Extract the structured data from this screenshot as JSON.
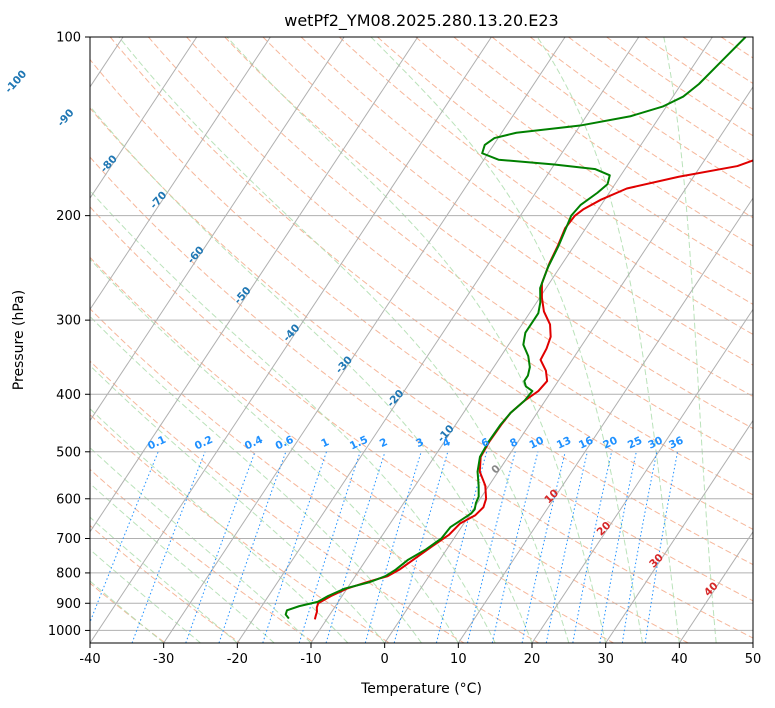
{
  "chart_data": {
    "type": "line",
    "title": "wetPf2_YM08.2025.280.13.20.E23",
    "xlabel": "Temperature (°C)",
    "ylabel": "Pressure (hPa)",
    "xlim": [
      -40,
      50
    ],
    "ylim": [
      1050,
      100
    ],
    "y_scale": "log",
    "x_ticks": [
      "-40",
      "-30",
      "-20",
      "-10",
      "0",
      "10",
      "20",
      "30",
      "40",
      "50"
    ],
    "x_tick_values": [
      -40,
      -30,
      -20,
      -10,
      0,
      10,
      20,
      30,
      40,
      50
    ],
    "y_ticks": [
      "100",
      "200",
      "300",
      "400",
      "500",
      "600",
      "700",
      "800",
      "900",
      "1000"
    ],
    "y_tick_values": [
      100,
      200,
      300,
      400,
      500,
      600,
      700,
      800,
      900,
      1000
    ],
    "grid": true,
    "colors": {
      "temperature": "#e00000",
      "dewpoint": "#008000",
      "isotherm_label": "#1f77b4",
      "mixing_ratio": "#1e90ff",
      "moist_adiabat_label": "#d62728",
      "dry_adiabat": "#f4a582",
      "moist_adiabat": "#b2dfb2",
      "grid": "#b0b0b0"
    },
    "series": [
      {
        "type": "temperature",
        "points": [
          {
            "p": 100,
            "t": 16.3
          },
          {
            "p": 115,
            "t": 10.0
          },
          {
            "p": 125,
            "t": 6.5
          },
          {
            "p": 132,
            "t": 5.6
          },
          {
            "p": 140,
            "t": 5.9
          },
          {
            "p": 148,
            "t": 6.8
          },
          {
            "p": 155,
            "t": 7.5
          },
          {
            "p": 160,
            "t": 7.3
          },
          {
            "p": 165,
            "t": 5.0
          },
          {
            "p": 172,
            "t": -2.0
          },
          {
            "p": 180,
            "t": -8.0
          },
          {
            "p": 188,
            "t": -10.5
          },
          {
            "p": 195,
            "t": -12.0
          },
          {
            "p": 200,
            "t": -12.6
          },
          {
            "p": 210,
            "t": -12.8
          },
          {
            "p": 225,
            "t": -12.2
          },
          {
            "p": 240,
            "t": -11.8
          },
          {
            "p": 260,
            "t": -11.0
          },
          {
            "p": 275,
            "t": -9.7
          },
          {
            "p": 290,
            "t": -8.2
          },
          {
            "p": 305,
            "t": -6.2
          },
          {
            "p": 320,
            "t": -5.0
          },
          {
            "p": 335,
            "t": -4.5
          },
          {
            "p": 350,
            "t": -4.3
          },
          {
            "p": 365,
            "t": -2.6
          },
          {
            "p": 380,
            "t": -1.5
          },
          {
            "p": 395,
            "t": -1.8
          },
          {
            "p": 410,
            "t": -2.8
          },
          {
            "p": 430,
            "t": -3.6
          },
          {
            "p": 450,
            "t": -3.8
          },
          {
            "p": 480,
            "t": -3.9
          },
          {
            "p": 510,
            "t": -3.7
          },
          {
            "p": 540,
            "t": -2.5
          },
          {
            "p": 570,
            "t": -0.5
          },
          {
            "p": 600,
            "t": 0.8
          },
          {
            "p": 620,
            "t": 1.2
          },
          {
            "p": 640,
            "t": 0.8
          },
          {
            "p": 660,
            "t": -0.5
          },
          {
            "p": 690,
            "t": -1.0
          },
          {
            "p": 720,
            "t": -2.2
          },
          {
            "p": 760,
            "t": -3.6
          },
          {
            "p": 790,
            "t": -4.6
          },
          {
            "p": 810,
            "t": -5.6
          },
          {
            "p": 830,
            "t": -8.0
          },
          {
            "p": 850,
            "t": -10.0
          },
          {
            "p": 875,
            "t": -11.5
          },
          {
            "p": 900,
            "t": -12.6
          },
          {
            "p": 915,
            "t": -12.4
          },
          {
            "p": 930,
            "t": -12.0
          },
          {
            "p": 945,
            "t": -11.8
          },
          {
            "p": 958,
            "t": -11.6
          }
        ]
      },
      {
        "type": "dewpoint",
        "points": [
          {
            "p": 100,
            "t": -5.5
          },
          {
            "p": 110,
            "t": -6.6
          },
          {
            "p": 120,
            "t": -7.6
          },
          {
            "p": 126,
            "t": -8.6
          },
          {
            "p": 131,
            "t": -10.5
          },
          {
            "p": 136,
            "t": -14.0
          },
          {
            "p": 141,
            "t": -20.0
          },
          {
            "p": 145,
            "t": -28.0
          },
          {
            "p": 148,
            "t": -30.5
          },
          {
            "p": 152,
            "t": -31.2
          },
          {
            "p": 157,
            "t": -30.8
          },
          {
            "p": 161,
            "t": -28.0
          },
          {
            "p": 164,
            "t": -20.0
          },
          {
            "p": 167,
            "t": -14.0
          },
          {
            "p": 171,
            "t": -11.5
          },
          {
            "p": 177,
            "t": -11.0
          },
          {
            "p": 183,
            "t": -11.6
          },
          {
            "p": 192,
            "t": -12.8
          },
          {
            "p": 200,
            "t": -13.1
          },
          {
            "p": 212,
            "t": -12.6
          },
          {
            "p": 225,
            "t": -12.1
          },
          {
            "p": 245,
            "t": -11.6
          },
          {
            "p": 265,
            "t": -10.8
          },
          {
            "p": 280,
            "t": -9.5
          },
          {
            "p": 292,
            "t": -8.8
          },
          {
            "p": 300,
            "t": -8.8
          },
          {
            "p": 315,
            "t": -8.8
          },
          {
            "p": 330,
            "t": -8.0
          },
          {
            "p": 345,
            "t": -6.3
          },
          {
            "p": 360,
            "t": -5.1
          },
          {
            "p": 372,
            "t": -4.6
          },
          {
            "p": 380,
            "t": -4.6
          },
          {
            "p": 388,
            "t": -3.9
          },
          {
            "p": 395,
            "t": -2.6
          },
          {
            "p": 410,
            "t": -2.8
          },
          {
            "p": 430,
            "t": -3.6
          },
          {
            "p": 450,
            "t": -3.9
          },
          {
            "p": 480,
            "t": -4.0
          },
          {
            "p": 510,
            "t": -3.8
          },
          {
            "p": 540,
            "t": -2.8
          },
          {
            "p": 570,
            "t": -1.4
          },
          {
            "p": 595,
            "t": -0.4
          },
          {
            "p": 610,
            "t": -0.2
          },
          {
            "p": 625,
            "t": 0.2
          },
          {
            "p": 635,
            "t": 0.1
          },
          {
            "p": 650,
            "t": -0.6
          },
          {
            "p": 670,
            "t": -1.5
          },
          {
            "p": 700,
            "t": -1.7
          },
          {
            "p": 730,
            "t": -2.8
          },
          {
            "p": 760,
            "t": -4.3
          },
          {
            "p": 790,
            "t": -5.1
          },
          {
            "p": 810,
            "t": -5.9
          },
          {
            "p": 830,
            "t": -7.6
          },
          {
            "p": 850,
            "t": -10.3
          },
          {
            "p": 875,
            "t": -11.9
          },
          {
            "p": 895,
            "t": -12.8
          },
          {
            "p": 910,
            "t": -14.9
          },
          {
            "p": 925,
            "t": -16.2
          },
          {
            "p": 940,
            "t": -16.0
          },
          {
            "p": 955,
            "t": -15.2
          }
        ]
      }
    ],
    "isotherm_labels": [
      "-100",
      "-90",
      "-80",
      "-70",
      "-60",
      "-50",
      "-40",
      "-30",
      "-20",
      "-10"
    ],
    "isotherm_label_values": [
      -100,
      -90,
      -80,
      -70,
      -60,
      -50,
      -40,
      -30,
      -20,
      -10
    ],
    "mixing_ratio_labels": [
      "0.1",
      "0.2",
      "0.4",
      "0.6",
      "1",
      "1.5",
      "2",
      "3",
      "4",
      "6",
      "8",
      "10",
      "13",
      "16",
      "20",
      "25",
      "30",
      "36"
    ],
    "mixing_ratio_values": [
      0.1,
      0.2,
      0.4,
      0.6,
      1,
      1.5,
      2,
      3,
      4,
      6,
      8,
      10,
      13,
      16,
      20,
      25,
      30,
      36
    ],
    "moist_adiabat_labels": [
      "0",
      "10",
      "20",
      "30",
      "40"
    ],
    "moist_adiabat_label_values": [
      0,
      10,
      20,
      30,
      40
    ]
  }
}
